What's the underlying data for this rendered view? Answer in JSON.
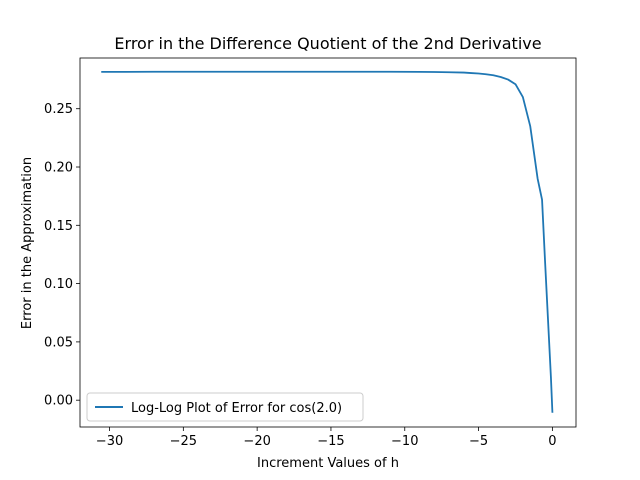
{
  "chart_data": {
    "type": "line",
    "title": "Error in the Difference Quotient of the 2nd Derivative",
    "xlabel": "Increment Values of h",
    "ylabel": "Error in the Approximation",
    "xlim": [
      -32.0,
      1.6
    ],
    "ylim": [
      -0.023,
      0.2935
    ],
    "x_ticks": [
      -30,
      -25,
      -20,
      -15,
      -10,
      -5,
      0
    ],
    "x_tick_labels": [
      "−30",
      "−25",
      "−20",
      "−15",
      "−10",
      "−5",
      "0"
    ],
    "y_ticks": [
      0.0,
      0.05,
      0.1,
      0.15,
      0.2,
      0.25
    ],
    "y_tick_labels": [
      "0.00",
      "0.05",
      "0.10",
      "0.15",
      "0.20",
      "0.25"
    ],
    "grid": false,
    "legend_position": "lower-left",
    "series": [
      {
        "name": "Log-Log Plot of Error for cos(2.0)",
        "color": "#1f77b4",
        "x": [
          -30.5,
          -29,
          -27,
          -25,
          -23,
          -21,
          -19,
          -17,
          -15,
          -13,
          -11,
          -9,
          -8,
          -7,
          -6,
          -5.5,
          -5,
          -4.5,
          -4,
          -3.5,
          -3,
          -2.5,
          -2,
          -1.5,
          -1,
          -0.7,
          -0.5,
          -0.3,
          -0.1,
          0.0
        ],
        "y": [
          0.2816,
          0.2816,
          0.2817,
          0.2817,
          0.2817,
          0.2817,
          0.2817,
          0.2817,
          0.2817,
          0.2817,
          0.2817,
          0.2816,
          0.2815,
          0.2813,
          0.281,
          0.2806,
          0.2802,
          0.2796,
          0.2787,
          0.2772,
          0.275,
          0.271,
          0.26,
          0.235,
          0.19,
          0.172,
          0.12,
          0.07,
          0.02,
          -0.01
        ]
      }
    ]
  }
}
